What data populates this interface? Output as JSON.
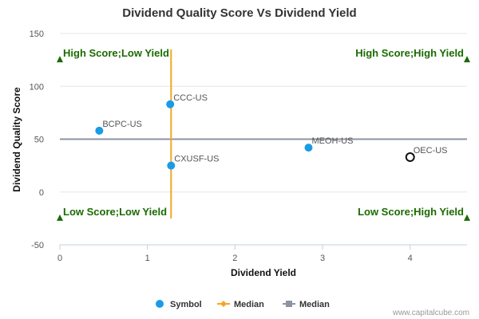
{
  "chart_data": {
    "type": "scatter",
    "title": "Dividend Quality Score Vs Dividend Yield",
    "xlabel": "Dividend Yield",
    "ylabel": "Dividend Quality Score",
    "xlim": [
      0,
      4.65
    ],
    "ylim": [
      -50,
      150
    ],
    "xticks": [
      "0",
      "1",
      "2",
      "3",
      "4"
    ],
    "yticks": [
      "150",
      "100",
      "50",
      "0",
      "-50"
    ],
    "points": [
      {
        "label": "BCPC-US",
        "x": 0.45,
        "y": 58,
        "style": "filled"
      },
      {
        "label": "CCC-US",
        "x": 1.26,
        "y": 83,
        "style": "filled"
      },
      {
        "label": "CXUSF-US",
        "x": 1.27,
        "y": 25,
        "style": "filled"
      },
      {
        "label": "MEOH-US",
        "x": 2.84,
        "y": 42,
        "style": "filled"
      },
      {
        "label": "OEC-US",
        "x": 4.0,
        "y": 33,
        "style": "hollow"
      }
    ],
    "median_x": 1.27,
    "median_y": 50,
    "quadrants": {
      "top_left": "High Score;Low Yield",
      "top_right": "High Score;High Yield",
      "bottom_left": "Low Score;Low Yield",
      "bottom_right": "Low Score;High Yield"
    },
    "legend": [
      {
        "name": "Symbol",
        "color": "#1a9be6",
        "marker": "circle"
      },
      {
        "name": "Median",
        "color": "#f5a623",
        "marker": "diamond"
      },
      {
        "name": "Median",
        "color": "#8c93a3",
        "marker": "square"
      }
    ],
    "colors": {
      "point": "#1a9be6",
      "median_x": "#f5a623",
      "median_y": "#8c93a3",
      "quadrant": "#1a6b00"
    }
  },
  "credit": "www.capitalcube.com"
}
